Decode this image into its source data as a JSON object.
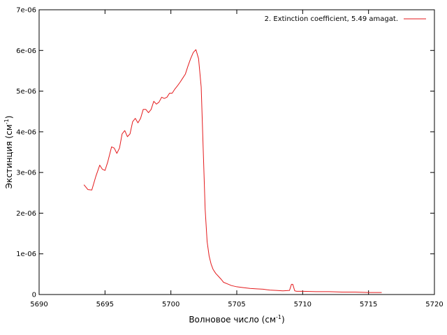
{
  "chart_data": {
    "type": "line",
    "title": "",
    "xlabel": "Волновое число (см",
    "xlabel_sup": "-1",
    "xlabel_tail": ")",
    "ylabel": "Экстинция (см",
    "ylabel_sup": "-1",
    "ylabel_tail": ")",
    "xlim": [
      5690,
      5720
    ],
    "ylim": [
      0,
      7e-06
    ],
    "x_ticks": [
      5690,
      5695,
      5700,
      5705,
      5710,
      5715,
      5720
    ],
    "x_tick_labels": [
      "5690",
      "5695",
      "5700",
      "5705",
      "5710",
      "5715",
      "5720"
    ],
    "y_ticks": [
      0,
      1e-06,
      2e-06,
      3e-06,
      4e-06,
      5e-06,
      6e-06,
      7e-06
    ],
    "y_tick_labels": [
      "0",
      "1e-06",
      "2e-06",
      "3e-06",
      "4e-06",
      "5e-06",
      "6e-06",
      "7e-06"
    ],
    "grid": false,
    "legend_position": "top-right",
    "series": [
      {
        "name": "2. Extinction coefficient, 5.49 amagat.",
        "color": "#e41a1c",
        "x": [
          5693.4,
          5693.7,
          5694.0,
          5694.3,
          5694.6,
          5694.8,
          5695.0,
          5695.2,
          5695.5,
          5695.7,
          5695.9,
          5696.1,
          5696.3,
          5696.5,
          5696.7,
          5696.9,
          5697.1,
          5697.3,
          5697.5,
          5697.7,
          5697.9,
          5698.1,
          5698.3,
          5698.5,
          5698.7,
          5698.9,
          5699.1,
          5699.3,
          5699.5,
          5699.7,
          5699.9,
          5700.1,
          5700.3,
          5700.5,
          5700.7,
          5700.9,
          5701.1,
          5701.3,
          5701.5,
          5701.7,
          5701.9,
          5702.1,
          5702.3,
          5702.45,
          5702.6,
          5702.75,
          5702.9,
          5703.05,
          5703.2,
          5703.4,
          5703.6,
          5703.8,
          5704.0,
          5704.3,
          5704.6,
          5705.0,
          5705.5,
          5706.0,
          5706.5,
          5707.0,
          5707.5,
          5708.0,
          5708.5,
          5709.0,
          5709.15,
          5709.25,
          5709.4,
          5709.55,
          5710.0,
          5711.0,
          5712.0,
          5713.0,
          5714.0,
          5715.0,
          5716.0
        ],
        "values": [
          2.7e-06,
          2.58e-06,
          2.57e-06,
          2.9e-06,
          3.18e-06,
          3.08e-06,
          3.05e-06,
          3.25e-06,
          3.63e-06,
          3.6e-06,
          3.47e-06,
          3.6e-06,
          3.95e-06,
          4.03e-06,
          3.88e-06,
          3.95e-06,
          4.25e-06,
          4.33e-06,
          4.22e-06,
          4.33e-06,
          4.55e-06,
          4.55e-06,
          4.47e-06,
          4.55e-06,
          4.75e-06,
          4.68e-06,
          4.73e-06,
          4.85e-06,
          4.82e-06,
          4.85e-06,
          4.95e-06,
          4.95e-06,
          5.05e-06,
          5.13e-06,
          5.22e-06,
          5.32e-06,
          5.42e-06,
          5.62e-06,
          5.8e-06,
          5.95e-06,
          6.02e-06,
          5.8e-06,
          5.1e-06,
          3.6e-06,
          2.1e-06,
          1.3e-06,
          9.5e-07,
          7.5e-07,
          6.2e-07,
          5.2e-07,
          4.5e-07,
          3.8e-07,
          3e-07,
          2.6e-07,
          2.2e-07,
          1.9e-07,
          1.7e-07,
          1.5e-07,
          1.4e-07,
          1.3e-07,
          1.1e-07,
          1e-07,
          9e-08,
          1e-07,
          2.5e-07,
          2.5e-07,
          9e-08,
          8e-08,
          8e-08,
          7e-08,
          7e-08,
          6e-08,
          6e-08,
          5e-08,
          5e-08
        ]
      }
    ]
  }
}
